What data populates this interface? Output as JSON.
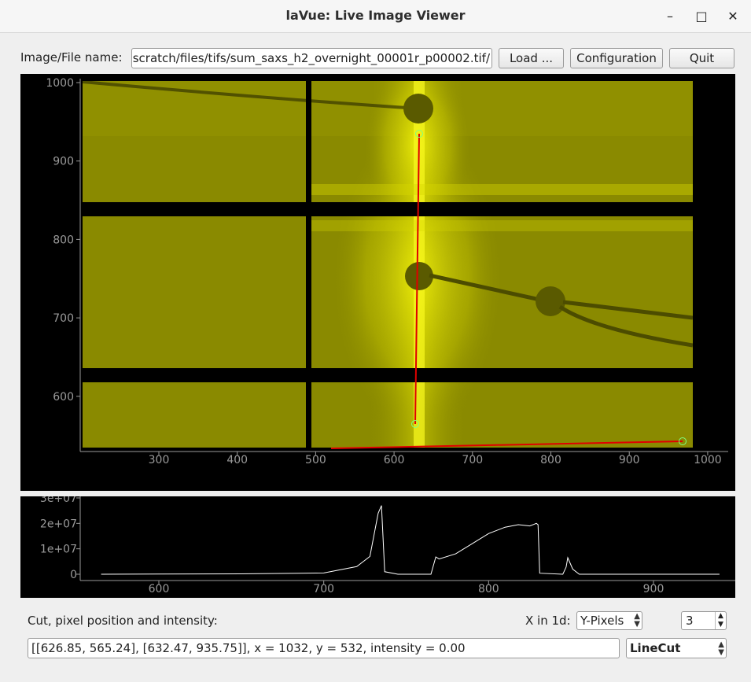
{
  "window": {
    "title": "laVue: Live Image Viewer",
    "minimize": "–",
    "maximize": "□",
    "close": "✕"
  },
  "toolbar": {
    "file_label": "Image/File name:",
    "file_value": "/scratch/files/tifs/sum_saxs_h2_overnight_00001r_p00002.tif",
    "load_label": "Load ...",
    "config_label": "Configuration",
    "quit_label": "Quit"
  },
  "image_view": {
    "x_ticks": [
      "300",
      "400",
      "500",
      "600",
      "700",
      "800",
      "900",
      "1000"
    ],
    "y_ticks": [
      "1000",
      "900",
      "800",
      "700",
      "600"
    ],
    "colors": {
      "detector": "#8a8a00",
      "bright": "#e8e800",
      "cut_line": "#e00000"
    }
  },
  "chart_data": {
    "type": "line",
    "x_ticks": [
      "600",
      "700",
      "800",
      "900"
    ],
    "y_ticks": [
      "3e+07",
      "2e+07",
      "1e+07",
      "0"
    ],
    "xlim": [
      562,
      948
    ],
    "ylim": [
      0,
      30000000
    ],
    "x": [
      565,
      600,
      650,
      700,
      720,
      728,
      733,
      735,
      737,
      745,
      765,
      768,
      770,
      780,
      790,
      800,
      810,
      818,
      825,
      829,
      830,
      831,
      845,
      847,
      848,
      851,
      855,
      900,
      940
    ],
    "y": [
      0,
      100000,
      150000,
      500000,
      3000000,
      7000000,
      24000000,
      27000000,
      1000000,
      0,
      0,
      6800000,
      6000000,
      8000000,
      12000000,
      16000000,
      18500000,
      19500000,
      19000000,
      20000000,
      19500000,
      400000,
      0,
      2800000,
      6500000,
      2000000,
      0,
      0,
      0
    ],
    "color": "#ffffff"
  },
  "bottom": {
    "cut_label": "Cut, pixel position and intensity:",
    "x_in_1d_label": "X in 1d:",
    "x_in_1d_value": "Y-Pixels",
    "spin_value": "3",
    "info_text": "[[626.85, 565.24], [632.47, 935.75]], x = 1032, y = 532, intensity = 0.00",
    "tool_value": "LineCut"
  }
}
